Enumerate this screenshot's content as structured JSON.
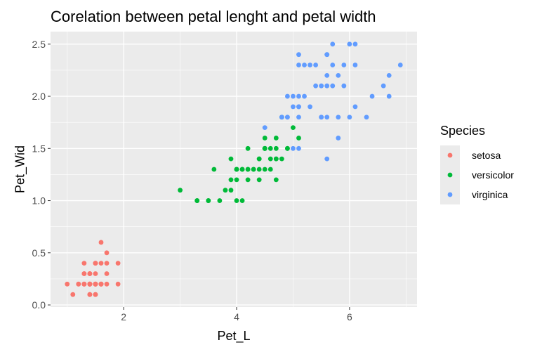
{
  "chart_data": {
    "type": "scatter",
    "title": "Corelation between petal lenght and petal width",
    "xlabel": "Pet_L",
    "ylabel": "Pet_Wid",
    "xlim": [
      0.705,
      7.195
    ],
    "ylim": [
      -0.02,
      2.62
    ],
    "xticks": [
      2,
      4,
      6
    ],
    "yticks": [
      0.0,
      0.5,
      1.0,
      1.5,
      2.0,
      2.5
    ],
    "ytick_labels": [
      "0.0",
      "0.5",
      "1.0",
      "1.5",
      "2.0",
      "2.5"
    ],
    "grid": true,
    "legend": {
      "title": "Species",
      "placement": "right"
    },
    "series": [
      {
        "name": "setosa",
        "color": "#F8766D",
        "points": [
          [
            1.4,
            0.2
          ],
          [
            1.4,
            0.2
          ],
          [
            1.3,
            0.2
          ],
          [
            1.5,
            0.2
          ],
          [
            1.4,
            0.2
          ],
          [
            1.7,
            0.4
          ],
          [
            1.4,
            0.3
          ],
          [
            1.5,
            0.2
          ],
          [
            1.4,
            0.2
          ],
          [
            1.5,
            0.1
          ],
          [
            1.5,
            0.2
          ],
          [
            1.6,
            0.2
          ],
          [
            1.4,
            0.1
          ],
          [
            1.1,
            0.1
          ],
          [
            1.2,
            0.2
          ],
          [
            1.5,
            0.4
          ],
          [
            1.3,
            0.4
          ],
          [
            1.4,
            0.3
          ],
          [
            1.7,
            0.3
          ],
          [
            1.5,
            0.3
          ],
          [
            1.7,
            0.2
          ],
          [
            1.5,
            0.4
          ],
          [
            1.0,
            0.2
          ],
          [
            1.7,
            0.5
          ],
          [
            1.9,
            0.2
          ],
          [
            1.6,
            0.2
          ],
          [
            1.6,
            0.4
          ],
          [
            1.5,
            0.2
          ],
          [
            1.4,
            0.2
          ],
          [
            1.6,
            0.2
          ],
          [
            1.6,
            0.2
          ],
          [
            1.5,
            0.4
          ],
          [
            1.5,
            0.1
          ],
          [
            1.4,
            0.2
          ],
          [
            1.5,
            0.2
          ],
          [
            1.2,
            0.2
          ],
          [
            1.3,
            0.2
          ],
          [
            1.4,
            0.1
          ],
          [
            1.3,
            0.2
          ],
          [
            1.5,
            0.2
          ],
          [
            1.3,
            0.3
          ],
          [
            1.3,
            0.3
          ],
          [
            1.3,
            0.2
          ],
          [
            1.6,
            0.6
          ],
          [
            1.9,
            0.4
          ],
          [
            1.4,
            0.3
          ],
          [
            1.6,
            0.2
          ],
          [
            1.4,
            0.2
          ],
          [
            1.5,
            0.2
          ],
          [
            1.4,
            0.2
          ]
        ]
      },
      {
        "name": "versicolor",
        "color": "#00BA38",
        "points": [
          [
            4.7,
            1.4
          ],
          [
            4.5,
            1.5
          ],
          [
            4.9,
            1.5
          ],
          [
            4.0,
            1.3
          ],
          [
            4.6,
            1.5
          ],
          [
            4.5,
            1.3
          ],
          [
            4.7,
            1.6
          ],
          [
            3.3,
            1.0
          ],
          [
            4.6,
            1.3
          ],
          [
            3.9,
            1.4
          ],
          [
            3.5,
            1.0
          ],
          [
            4.2,
            1.5
          ],
          [
            4.0,
            1.0
          ],
          [
            4.7,
            1.4
          ],
          [
            3.6,
            1.3
          ],
          [
            4.4,
            1.4
          ],
          [
            4.5,
            1.5
          ],
          [
            4.1,
            1.0
          ],
          [
            4.5,
            1.5
          ],
          [
            3.9,
            1.1
          ],
          [
            4.8,
            1.8
          ],
          [
            4.0,
            1.3
          ],
          [
            4.9,
            1.5
          ],
          [
            4.7,
            1.2
          ],
          [
            4.3,
            1.3
          ],
          [
            4.4,
            1.4
          ],
          [
            4.8,
            1.4
          ],
          [
            5.0,
            1.7
          ],
          [
            4.5,
            1.5
          ],
          [
            3.5,
            1.0
          ],
          [
            3.8,
            1.1
          ],
          [
            3.7,
            1.0
          ],
          [
            3.9,
            1.2
          ],
          [
            5.1,
            1.6
          ],
          [
            4.5,
            1.5
          ],
          [
            4.5,
            1.6
          ],
          [
            4.7,
            1.5
          ],
          [
            4.4,
            1.3
          ],
          [
            4.1,
            1.3
          ],
          [
            4.0,
            1.3
          ],
          [
            4.4,
            1.2
          ],
          [
            4.6,
            1.4
          ],
          [
            4.0,
            1.2
          ],
          [
            3.3,
            1.0
          ],
          [
            4.2,
            1.3
          ],
          [
            4.2,
            1.2
          ],
          [
            4.2,
            1.3
          ],
          [
            4.3,
            1.3
          ],
          [
            3.0,
            1.1
          ],
          [
            4.1,
            1.3
          ]
        ]
      },
      {
        "name": "virginica",
        "color": "#619CFF",
        "points": [
          [
            6.0,
            2.5
          ],
          [
            5.1,
            1.9
          ],
          [
            5.9,
            2.1
          ],
          [
            5.6,
            1.8
          ],
          [
            5.8,
            2.2
          ],
          [
            6.6,
            2.1
          ],
          [
            4.5,
            1.7
          ],
          [
            6.3,
            1.8
          ],
          [
            5.8,
            1.8
          ],
          [
            6.1,
            2.5
          ],
          [
            5.1,
            2.0
          ],
          [
            5.3,
            1.9
          ],
          [
            5.5,
            2.1
          ],
          [
            5.0,
            2.0
          ],
          [
            5.1,
            2.4
          ],
          [
            5.3,
            2.3
          ],
          [
            5.5,
            1.8
          ],
          [
            6.7,
            2.2
          ],
          [
            6.9,
            2.3
          ],
          [
            5.0,
            1.5
          ],
          [
            5.7,
            2.3
          ],
          [
            4.9,
            2.0
          ],
          [
            6.7,
            2.0
          ],
          [
            4.9,
            1.8
          ],
          [
            5.7,
            2.1
          ],
          [
            6.0,
            1.8
          ],
          [
            4.8,
            1.8
          ],
          [
            4.9,
            1.8
          ],
          [
            5.6,
            2.1
          ],
          [
            5.8,
            1.6
          ],
          [
            6.1,
            1.9
          ],
          [
            6.4,
            2.0
          ],
          [
            5.6,
            2.2
          ],
          [
            5.1,
            1.5
          ],
          [
            5.6,
            1.4
          ],
          [
            6.1,
            2.3
          ],
          [
            5.6,
            2.4
          ],
          [
            5.5,
            1.8
          ],
          [
            4.8,
            1.8
          ],
          [
            5.4,
            2.1
          ],
          [
            5.6,
            2.4
          ],
          [
            5.1,
            2.3
          ],
          [
            5.1,
            1.9
          ],
          [
            5.9,
            2.3
          ],
          [
            5.7,
            2.5
          ],
          [
            5.2,
            2.3
          ],
          [
            5.0,
            1.9
          ],
          [
            5.2,
            2.0
          ],
          [
            5.4,
            2.3
          ],
          [
            5.1,
            1.8
          ]
        ]
      }
    ]
  }
}
